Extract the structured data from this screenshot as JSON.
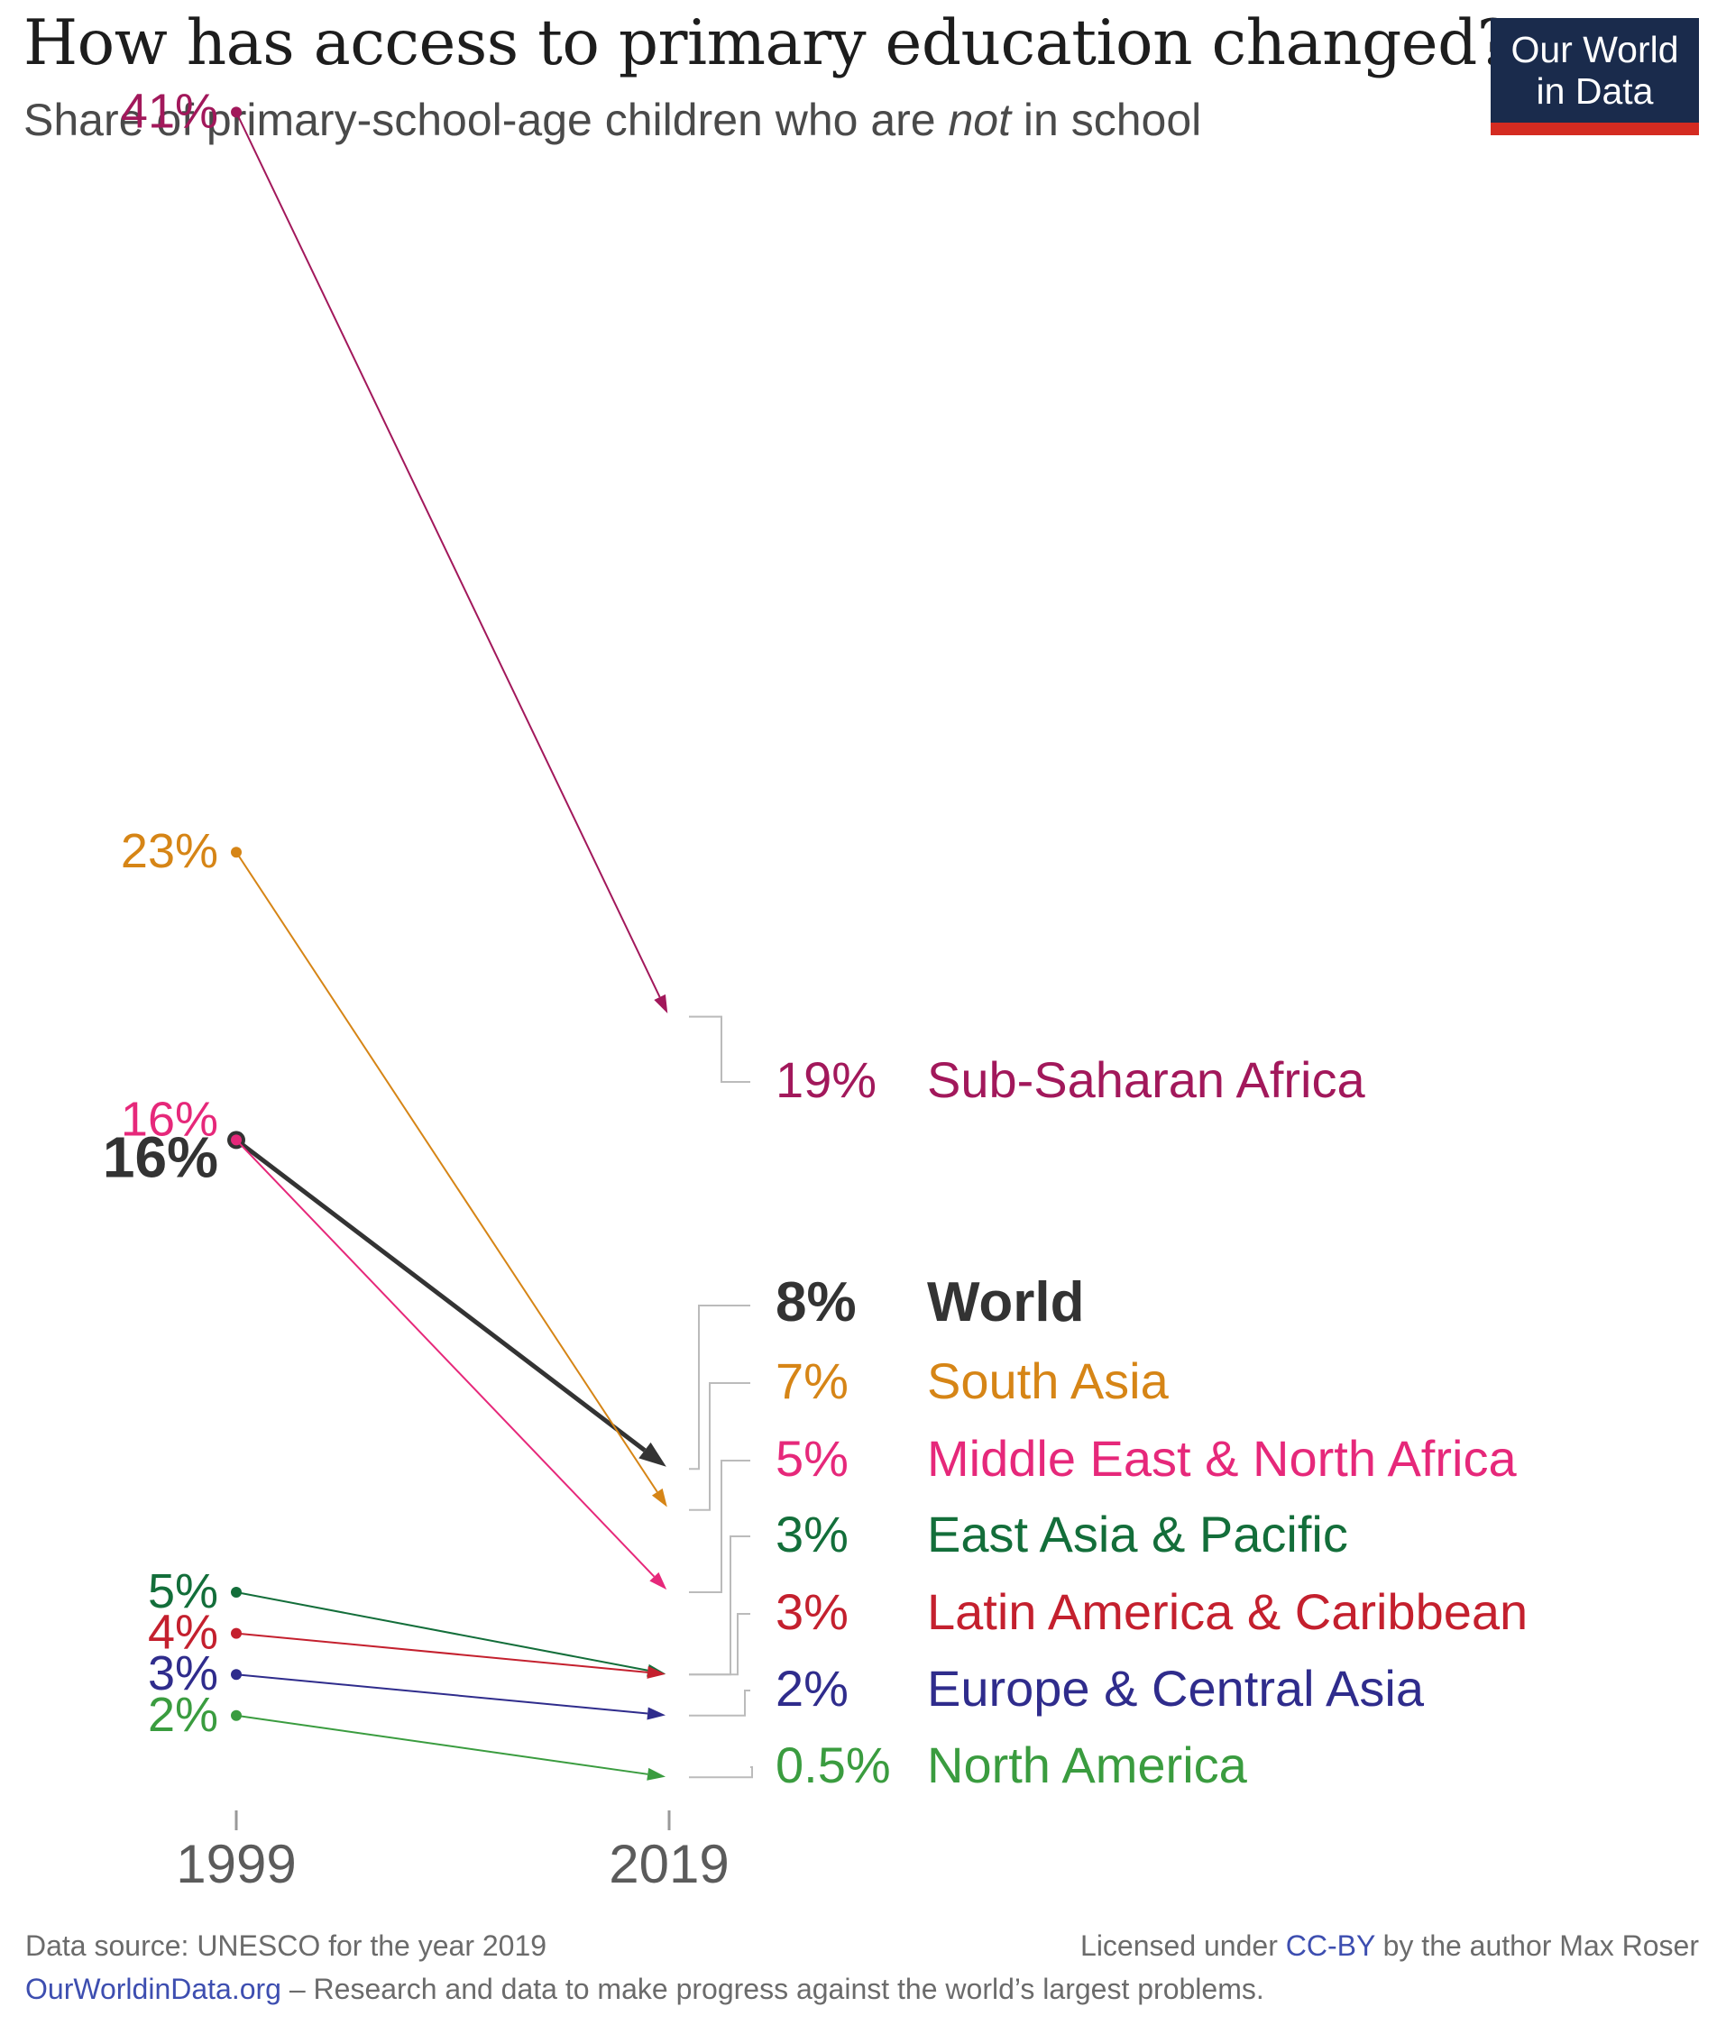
{
  "title": "How has access to primary education changed?",
  "subtitle_pre": "Share of primary-school-age children who are ",
  "subtitle_em": "not",
  "subtitle_post": " in school",
  "logo": {
    "line1": "Our World",
    "line2": "in Data"
  },
  "footer": {
    "source": "Data source: UNESCO for the year 2019",
    "license_pre": "Licensed under ",
    "license_link": "CC-BY",
    "license_post": " by the author Max Roser",
    "site": "OurWorldinData.org",
    "tagline": " – Research and data to make progress against the world’s largest problems."
  },
  "chart_data": {
    "type": "slope",
    "x": [
      "1999",
      "2019"
    ],
    "series": [
      {
        "name": "Sub-Saharan Africa",
        "start": 41,
        "end": 19,
        "start_label": "41%",
        "end_label": "19%",
        "color": "#a2185b"
      },
      {
        "name": "World",
        "start": 16,
        "end": 8,
        "start_label": "16%",
        "end_label": "8%",
        "color": "#333333",
        "bold": true
      },
      {
        "name": "South Asia",
        "start": 23,
        "end": 7,
        "start_label": "23%",
        "end_label": "7%",
        "color": "#d68516"
      },
      {
        "name": "Middle East & North Africa",
        "start": 16,
        "end": 5,
        "start_label": "16%",
        "end_label": "5%",
        "color": "#e6287a"
      },
      {
        "name": "East Asia & Pacific",
        "start": 5,
        "end": 3,
        "start_label": "5%",
        "end_label": "3%",
        "color": "#136e3a"
      },
      {
        "name": "Latin America & Caribbean",
        "start": 4,
        "end": 3,
        "start_label": "4%",
        "end_label": "3%",
        "color": "#c4202e"
      },
      {
        "name": "Europe & Central Asia",
        "start": 3,
        "end": 2,
        "start_label": "3%",
        "end_label": "2%",
        "color": "#2f2c8c"
      },
      {
        "name": "North America",
        "start": 2,
        "end": 0.5,
        "start_label": "2%",
        "end_label": "0.5%",
        "color": "#3a9c3f"
      }
    ]
  }
}
